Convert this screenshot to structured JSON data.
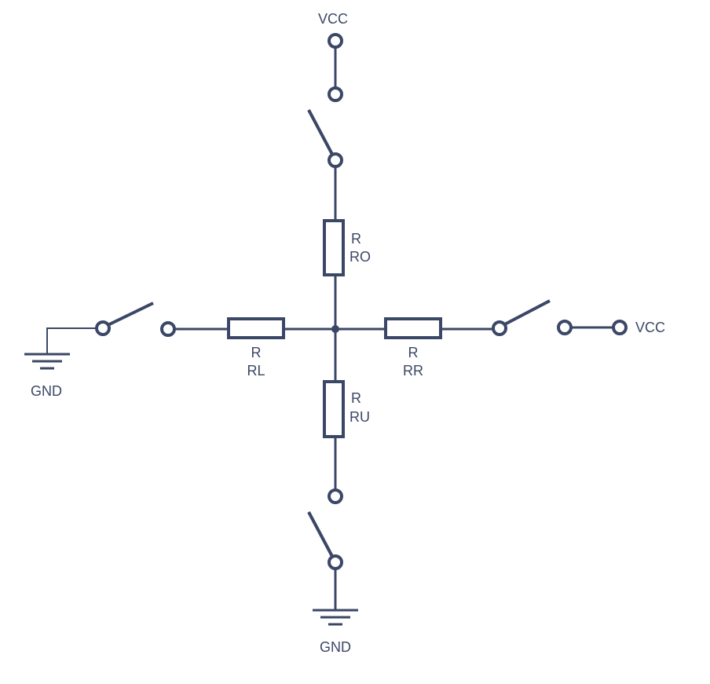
{
  "colors": {
    "line": "#3b4766",
    "background": "#ffffff"
  },
  "supplies": {
    "vcc_top": "VCC",
    "vcc_right": "VCC",
    "gnd_left": "GND",
    "gnd_bottom": "GND"
  },
  "resistors": {
    "top": {
      "line1": "R",
      "line2": "RO"
    },
    "left": {
      "line1": "R",
      "line2": "RL"
    },
    "right": {
      "line1": "R",
      "line2": "RR"
    },
    "bottom": {
      "line1": "R",
      "line2": "RU"
    }
  },
  "switches": [
    {
      "id": "top",
      "state": "open"
    },
    {
      "id": "left",
      "state": "open"
    },
    {
      "id": "right",
      "state": "open"
    },
    {
      "id": "bottom",
      "state": "open"
    }
  ]
}
